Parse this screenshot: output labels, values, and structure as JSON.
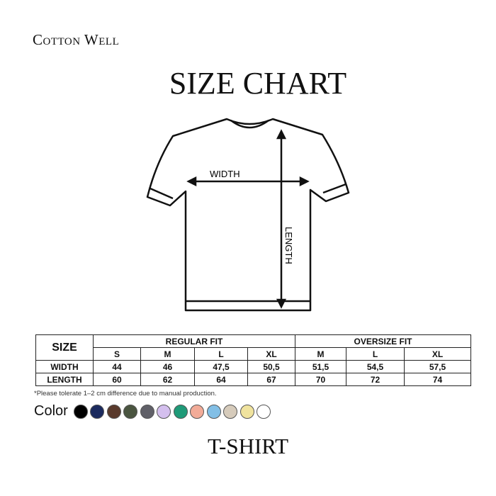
{
  "brand": "Cotton Well",
  "title": "SIZE CHART",
  "diagram": {
    "width_label": "WIDTH",
    "length_label": "LENGTH"
  },
  "table": {
    "size_header": "SIZE",
    "groups": [
      "REGULAR FIT",
      "OVERSIZE FIT"
    ],
    "sizes": [
      "S",
      "M",
      "L",
      "XL",
      "M",
      "L",
      "XL"
    ],
    "rows": [
      {
        "label": "WIDTH",
        "values": [
          "44",
          "46",
          "47,5",
          "50,5",
          "51,5",
          "54,5",
          "57,5"
        ]
      },
      {
        "label": "LENGTH",
        "values": [
          "60",
          "62",
          "64",
          "67",
          "70",
          "72",
          "74"
        ]
      }
    ]
  },
  "note": "*Please tolerate 1–2 cm difference due to manual production.",
  "color_label": "Color",
  "colors": [
    "#000000",
    "#1b2a5e",
    "#5a3a2c",
    "#4a5540",
    "#606068",
    "#d4bfee",
    "#1f9a78",
    "#f2ab98",
    "#82bfe6",
    "#d6cbbb",
    "#f0e39e",
    "#ffffff"
  ],
  "product": "T-SHIRT"
}
